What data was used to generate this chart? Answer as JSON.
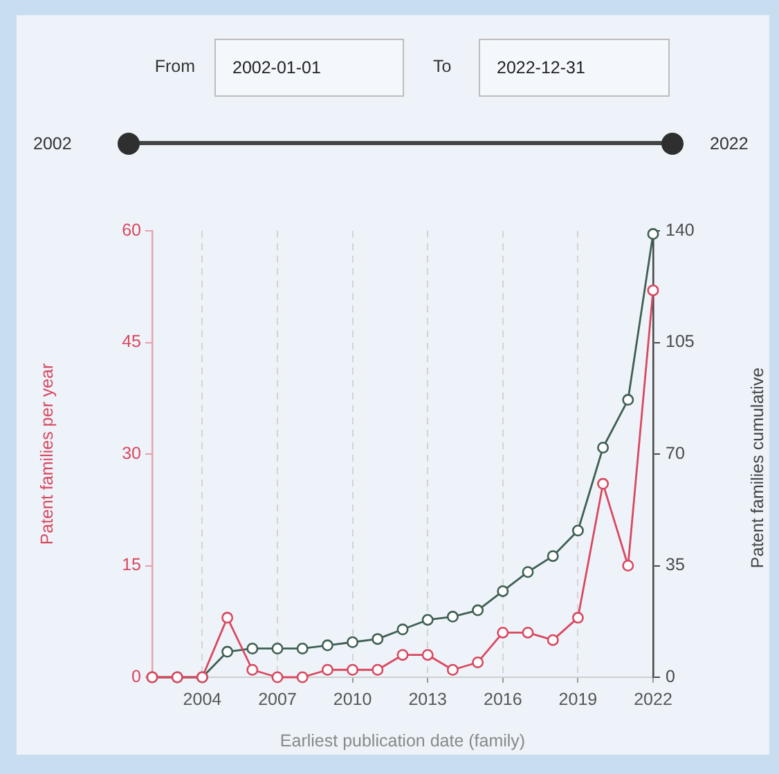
{
  "chart_data": {
    "type": "line",
    "annotations": [
      "From",
      "2002-01-01",
      "To",
      "2022-12-31",
      "2002",
      "2022"
    ],
    "xlabel": "Earliest publication date (family)",
    "ylabel": "Patent families per year",
    "y2label": "Patent families cumulative",
    "x": [
      2002,
      2003,
      2004,
      2005,
      2006,
      2007,
      2008,
      2009,
      2010,
      2011,
      2012,
      2013,
      2014,
      2015,
      2016,
      2017,
      2018,
      2019,
      2020,
      2021,
      2022
    ],
    "series": [
      {
        "color": "#d9485f",
        "values": [
          0,
          0,
          0,
          8,
          1,
          0,
          0,
          1,
          1,
          1,
          3,
          3,
          1,
          2,
          6,
          6,
          5,
          8,
          26,
          15,
          52
        ]
      },
      {
        "color": "#3f5f52",
        "axis": "y2",
        "values": [
          0,
          0,
          0,
          8,
          9,
          9,
          9,
          10,
          11,
          12,
          15,
          18,
          19,
          21,
          27,
          33,
          38,
          46,
          72,
          87,
          139
        ]
      }
    ],
    "xlim": [
      2002,
      2022
    ],
    "xticks": [
      2004,
      2007,
      2010,
      2013,
      2016,
      2019,
      2022
    ],
    "ylim": [
      0,
      60
    ],
    "yticks": [
      0,
      15,
      30,
      45,
      60
    ],
    "y2lim": [
      0,
      140
    ],
    "y2ticks": [
      0,
      35,
      70,
      105,
      140
    ],
    "grid": "x",
    "marker": "circle",
    "line_style": "solid"
  }
}
